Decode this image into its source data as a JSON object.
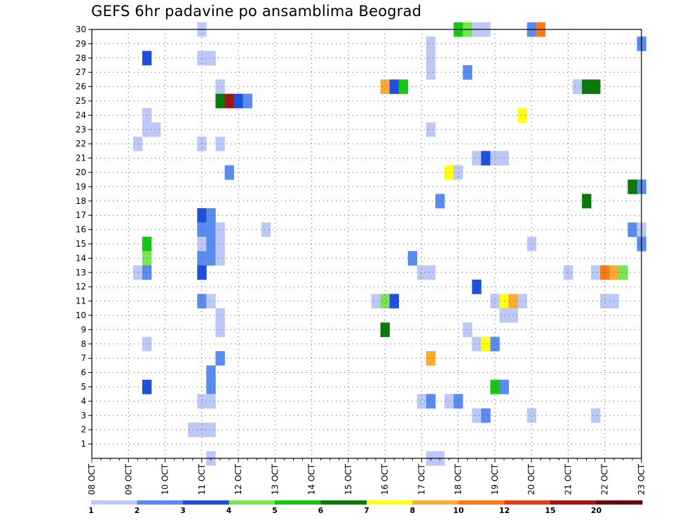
{
  "chart_data": {
    "type": "heatmap",
    "title": "GEFS 6hr padavine po ansamblima Beograd",
    "y_ticks": [
      1,
      2,
      3,
      4,
      5,
      6,
      7,
      8,
      9,
      10,
      11,
      12,
      13,
      14,
      15,
      16,
      17,
      18,
      19,
      20,
      21,
      22,
      23,
      24,
      25,
      26,
      27,
      28,
      29,
      30
    ],
    "x_ticks": [
      "08 OCT",
      "09 OCT",
      "10 OCT",
      "11 OCT",
      "12 OCT",
      "13 OCT",
      "14 OCT",
      "15 OCT",
      "16 OCT",
      "17 OCT",
      "18 OCT",
      "19 OCT",
      "20 OCT",
      "21 OCT",
      "22 OCT",
      "23 OCT"
    ],
    "x_range_days": [
      0,
      15
    ],
    "y_range": [
      0,
      30
    ],
    "grid": true,
    "colorbar": {
      "labels": [
        "1",
        "2",
        "3",
        "4",
        "5",
        "6",
        "7",
        "8",
        "10",
        "12",
        "15",
        "20"
      ],
      "colors": [
        "#bcc8f5",
        "#5a8cf0",
        "#1e50dc",
        "#78e650",
        "#14c814",
        "#0a780a",
        "#ffff14",
        "#ffaa32",
        "#ff7814",
        "#e63c14",
        "#a01414",
        "#640a0a"
      ]
    },
    "cells": [
      {
        "ens": 30,
        "day": 3.0,
        "level": 1
      },
      {
        "ens": 30,
        "day": 10.0,
        "level": 5
      },
      {
        "ens": 30,
        "day": 10.25,
        "level": 4
      },
      {
        "ens": 30,
        "day": 10.5,
        "level": 1
      },
      {
        "ens": 30,
        "day": 10.75,
        "level": 1
      },
      {
        "ens": 30,
        "day": 12.0,
        "level": 2
      },
      {
        "ens": 30,
        "day": 12.25,
        "level": 10
      },
      {
        "ens": 29,
        "day": 9.25,
        "level": 1
      },
      {
        "ens": 29,
        "day": 15.0,
        "level": 2
      },
      {
        "ens": 28,
        "day": 1.5,
        "level": 3
      },
      {
        "ens": 28,
        "day": 3.0,
        "level": 1
      },
      {
        "ens": 28,
        "day": 3.25,
        "level": 1
      },
      {
        "ens": 28,
        "day": 9.25,
        "level": 1
      },
      {
        "ens": 27,
        "day": 9.25,
        "level": 1
      },
      {
        "ens": 27,
        "day": 10.25,
        "level": 2
      },
      {
        "ens": 26,
        "day": 3.5,
        "level": 1
      },
      {
        "ens": 26,
        "day": 8.0,
        "level": 8
      },
      {
        "ens": 26,
        "day": 8.25,
        "level": 3
      },
      {
        "ens": 26,
        "day": 8.5,
        "level": 5
      },
      {
        "ens": 26,
        "day": 13.25,
        "level": 1
      },
      {
        "ens": 26,
        "day": 13.5,
        "level": 6
      },
      {
        "ens": 26,
        "day": 13.75,
        "level": 6
      },
      {
        "ens": 25,
        "day": 3.5,
        "level": 6
      },
      {
        "ens": 25,
        "day": 3.75,
        "level": 15
      },
      {
        "ens": 25,
        "day": 4.0,
        "level": 3
      },
      {
        "ens": 25,
        "day": 4.25,
        "level": 2
      },
      {
        "ens": 24,
        "day": 1.5,
        "level": 1
      },
      {
        "ens": 24,
        "day": 11.75,
        "level": 7
      },
      {
        "ens": 23,
        "day": 1.5,
        "level": 1
      },
      {
        "ens": 23,
        "day": 1.75,
        "level": 1
      },
      {
        "ens": 23,
        "day": 9.25,
        "level": 1
      },
      {
        "ens": 22,
        "day": 1.25,
        "level": 1
      },
      {
        "ens": 22,
        "day": 3.0,
        "level": 1
      },
      {
        "ens": 22,
        "day": 3.5,
        "level": 1
      },
      {
        "ens": 21,
        "day": 10.5,
        "level": 1
      },
      {
        "ens": 21,
        "day": 10.75,
        "level": 3
      },
      {
        "ens": 21,
        "day": 11.0,
        "level": 1
      },
      {
        "ens": 21,
        "day": 11.25,
        "level": 1
      },
      {
        "ens": 20,
        "day": 3.75,
        "level": 2
      },
      {
        "ens": 20,
        "day": 9.75,
        "level": 7
      },
      {
        "ens": 20,
        "day": 10.0,
        "level": 1
      },
      {
        "ens": 19,
        "day": 15.0,
        "level": 2
      },
      {
        "ens": 19,
        "day": 14.75,
        "level": 6
      },
      {
        "ens": 18,
        "day": 9.5,
        "level": 2
      },
      {
        "ens": 18,
        "day": 13.5,
        "level": 6
      },
      {
        "ens": 17,
        "day": 3.0,
        "level": 3
      },
      {
        "ens": 17,
        "day": 3.25,
        "level": 2
      },
      {
        "ens": 16,
        "day": 3.0,
        "level": 2
      },
      {
        "ens": 16,
        "day": 3.25,
        "level": 2
      },
      {
        "ens": 16,
        "day": 3.5,
        "level": 1
      },
      {
        "ens": 16,
        "day": 4.75,
        "level": 1
      },
      {
        "ens": 16,
        "day": 14.75,
        "level": 2
      },
      {
        "ens": 16,
        "day": 15.0,
        "level": 1
      },
      {
        "ens": 15,
        "day": 1.5,
        "level": 5
      },
      {
        "ens": 15,
        "day": 3.0,
        "level": 1
      },
      {
        "ens": 15,
        "day": 3.25,
        "level": 2
      },
      {
        "ens": 15,
        "day": 3.5,
        "level": 1
      },
      {
        "ens": 15,
        "day": 12.0,
        "level": 1
      },
      {
        "ens": 15,
        "day": 15.0,
        "level": 2
      },
      {
        "ens": 14,
        "day": 1.5,
        "level": 4
      },
      {
        "ens": 14,
        "day": 3.0,
        "level": 2
      },
      {
        "ens": 14,
        "day": 3.25,
        "level": 2
      },
      {
        "ens": 14,
        "day": 3.5,
        "level": 1
      },
      {
        "ens": 14,
        "day": 8.75,
        "level": 2
      },
      {
        "ens": 13,
        "day": 1.25,
        "level": 1
      },
      {
        "ens": 13,
        "day": 1.5,
        "level": 2
      },
      {
        "ens": 13,
        "day": 3.0,
        "level": 3
      },
      {
        "ens": 13,
        "day": 9.0,
        "level": 1
      },
      {
        "ens": 13,
        "day": 9.25,
        "level": 1
      },
      {
        "ens": 13,
        "day": 13.0,
        "level": 1
      },
      {
        "ens": 13,
        "day": 13.75,
        "level": 1
      },
      {
        "ens": 13,
        "day": 14.0,
        "level": 10
      },
      {
        "ens": 13,
        "day": 14.25,
        "level": 8
      },
      {
        "ens": 13,
        "day": 14.5,
        "level": 4
      },
      {
        "ens": 12,
        "day": 10.5,
        "level": 3
      },
      {
        "ens": 11,
        "day": 3.0,
        "level": 2
      },
      {
        "ens": 11,
        "day": 3.25,
        "level": 1
      },
      {
        "ens": 11,
        "day": 7.75,
        "level": 1
      },
      {
        "ens": 11,
        "day": 8.0,
        "level": 4
      },
      {
        "ens": 11,
        "day": 8.25,
        "level": 3
      },
      {
        "ens": 11,
        "day": 11.0,
        "level": 1
      },
      {
        "ens": 11,
        "day": 11.25,
        "level": 7
      },
      {
        "ens": 11,
        "day": 11.5,
        "level": 8
      },
      {
        "ens": 11,
        "day": 11.75,
        "level": 1
      },
      {
        "ens": 11,
        "day": 14.0,
        "level": 1
      },
      {
        "ens": 11,
        "day": 14.25,
        "level": 1
      },
      {
        "ens": 10,
        "day": 3.5,
        "level": 1
      },
      {
        "ens": 10,
        "day": 11.25,
        "level": 1
      },
      {
        "ens": 10,
        "day": 11.5,
        "level": 1
      },
      {
        "ens": 9,
        "day": 3.5,
        "level": 1
      },
      {
        "ens": 9,
        "day": 8.0,
        "level": 6
      },
      {
        "ens": 9,
        "day": 10.25,
        "level": 1
      },
      {
        "ens": 8,
        "day": 1.5,
        "level": 1
      },
      {
        "ens": 8,
        "day": 10.5,
        "level": 1
      },
      {
        "ens": 8,
        "day": 10.75,
        "level": 7
      },
      {
        "ens": 8,
        "day": 11.0,
        "level": 2
      },
      {
        "ens": 7,
        "day": 3.5,
        "level": 2
      },
      {
        "ens": 7,
        "day": 9.25,
        "level": 8
      },
      {
        "ens": 6,
        "day": 3.25,
        "level": 2
      },
      {
        "ens": 5,
        "day": 1.5,
        "level": 3
      },
      {
        "ens": 5,
        "day": 3.25,
        "level": 2
      },
      {
        "ens": 5,
        "day": 11.0,
        "level": 5
      },
      {
        "ens": 5,
        "day": 11.25,
        "level": 2
      },
      {
        "ens": 4,
        "day": 3.0,
        "level": 1
      },
      {
        "ens": 4,
        "day": 3.25,
        "level": 1
      },
      {
        "ens": 4,
        "day": 9.0,
        "level": 1
      },
      {
        "ens": 4,
        "day": 9.25,
        "level": 2
      },
      {
        "ens": 4,
        "day": 9.75,
        "level": 1
      },
      {
        "ens": 4,
        "day": 10.0,
        "level": 2
      },
      {
        "ens": 3,
        "day": 10.5,
        "level": 1
      },
      {
        "ens": 3,
        "day": 10.75,
        "level": 2
      },
      {
        "ens": 3,
        "day": 12.0,
        "level": 1
      },
      {
        "ens": 3,
        "day": 13.75,
        "level": 1
      },
      {
        "ens": 2,
        "day": 2.75,
        "level": 1
      },
      {
        "ens": 2,
        "day": 3.0,
        "level": 1
      },
      {
        "ens": 2,
        "day": 3.25,
        "level": 1
      },
      {
        "ens": 0,
        "day": 3.25,
        "level": 1
      },
      {
        "ens": 0,
        "day": 9.25,
        "level": 1
      },
      {
        "ens": 0,
        "day": 9.5,
        "level": 1
      }
    ]
  }
}
